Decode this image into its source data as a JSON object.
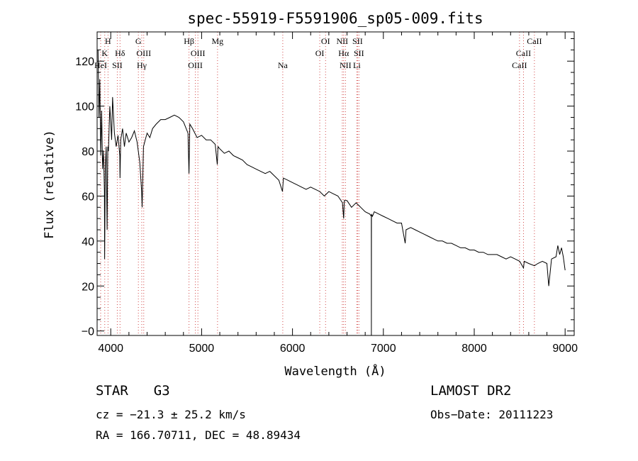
{
  "chart_data": {
    "type": "line",
    "title": "spec-55919-F5591906_sp05-009.fits",
    "xlabel": "Wavelength (Å)",
    "ylabel": "Flux (relative)",
    "xlim": [
      3850,
      9100
    ],
    "ylim": [
      -2,
      133
    ],
    "xticks": [
      4000,
      5000,
      6000,
      7000,
      8000,
      9000
    ],
    "yticks": [
      0,
      20,
      40,
      60,
      80,
      100,
      120
    ],
    "ytick_labels": [
      "−0",
      "20",
      "40",
      "60",
      "80",
      "100",
      "120"
    ],
    "grid": false,
    "series": [
      {
        "x": [
          3860,
          3870,
          3880,
          3890,
          3900,
          3910,
          3920,
          3930,
          3933,
          3940,
          3950,
          3960,
          3968,
          3975,
          3990,
          4000,
          4010,
          4020,
          4040,
          4060,
          4080,
          4100,
          4102,
          4110,
          4130,
          4150,
          4170,
          4200,
          4230,
          4260,
          4290,
          4320,
          4340,
          4345,
          4360,
          4380,
          4400,
          4430,
          4460,
          4500,
          4550,
          4600,
          4650,
          4700,
          4750,
          4800,
          4850,
          4861,
          4870,
          4900,
          4950,
          5000,
          5050,
          5100,
          5150,
          5172,
          5180,
          5200,
          5250,
          5300,
          5350,
          5400,
          5450,
          5500,
          5550,
          5600,
          5650,
          5700,
          5750,
          5800,
          5850,
          5890,
          5900,
          5950,
          6000,
          6050,
          6100,
          6150,
          6200,
          6250,
          6300,
          6350,
          6400,
          6450,
          6500,
          6550,
          6563,
          6570,
          6600,
          6650,
          6700,
          6750,
          6800,
          6850,
          6867,
          6868,
          6869,
          6880,
          6900,
          6950,
          7000,
          7050,
          7100,
          7150,
          7200,
          7240,
          7250,
          7300,
          7350,
          7400,
          7450,
          7500,
          7550,
          7600,
          7650,
          7700,
          7750,
          7800,
          7850,
          7900,
          7950,
          8000,
          8050,
          8100,
          8150,
          8200,
          8250,
          8300,
          8350,
          8400,
          8450,
          8500,
          8542,
          8550,
          8600,
          8662,
          8700,
          8750,
          8800,
          8820,
          8850,
          8900,
          8920,
          8940,
          8960,
          8980,
          9000
        ],
        "y": [
          125,
          95,
          112,
          78,
          98,
          72,
          80,
          62,
          32,
          72,
          82,
          45,
          82,
          80,
          100,
          93,
          85,
          104,
          88,
          82,
          87,
          78,
          68,
          85,
          90,
          82,
          88,
          84,
          86,
          89,
          84,
          75,
          62,
          55,
          82,
          85,
          88,
          86,
          90,
          92,
          94,
          94,
          95,
          96,
          95,
          93,
          88,
          70,
          92,
          90,
          86,
          87,
          85,
          85,
          83,
          74,
          82,
          81,
          79,
          80,
          78,
          77,
          76,
          74,
          73,
          72,
          71,
          70,
          71,
          69,
          67,
          62,
          68,
          67,
          66,
          65,
          64,
          63,
          64,
          63,
          62,
          60,
          62,
          61,
          60,
          57,
          50,
          58,
          58,
          55,
          57,
          55,
          53,
          52,
          51,
          -2,
          52,
          51,
          53,
          52,
          51,
          50,
          49,
          48,
          48,
          39,
          45,
          46,
          45,
          44,
          43,
          42,
          41,
          40,
          40,
          39,
          39,
          38,
          37,
          37,
          36,
          36,
          35,
          35,
          34,
          34,
          34,
          33,
          32,
          33,
          32,
          31,
          28,
          31,
          30,
          29,
          30,
          31,
          30,
          20,
          32,
          33,
          38,
          34,
          37,
          33,
          27
        ]
      }
    ],
    "lines": [
      {
        "label": "H",
        "row": 0,
        "x": 3970
      },
      {
        "label": "K",
        "row": 1,
        "x": 3934
      },
      {
        "label": "HeI",
        "row": 2,
        "x": 3889
      },
      {
        "label": "Hδ",
        "row": 1,
        "x": 4102
      },
      {
        "label": "SII",
        "row": 2,
        "x": 4072
      },
      {
        "label": "G",
        "row": 0,
        "x": 4304
      },
      {
        "label": "OIII",
        "row": 1,
        "x": 4363
      },
      {
        "label": "Hγ",
        "row": 2,
        "x": 4341
      },
      {
        "label": "Hβ",
        "row": 0,
        "x": 4861
      },
      {
        "label": "OIII",
        "row": 1,
        "x": 4959
      },
      {
        "label": "OIII",
        "row": 2,
        "x": 4931
      },
      {
        "label": "Mg",
        "row": 0,
        "x": 5175
      },
      {
        "label": "Na",
        "row": 2,
        "x": 5893
      },
      {
        "label": "OI",
        "row": 0,
        "x": 6364
      },
      {
        "label": "OI",
        "row": 1,
        "x": 6300
      },
      {
        "label": "NII",
        "row": 0,
        "x": 6548
      },
      {
        "label": "Hα",
        "row": 1,
        "x": 6563
      },
      {
        "label": "NII",
        "row": 2,
        "x": 6583
      },
      {
        "label": "SII",
        "row": 0,
        "x": 6716
      },
      {
        "label": "SII",
        "row": 1,
        "x": 6731
      },
      {
        "label": "Li",
        "row": 2,
        "x": 6708
      },
      {
        "label": "CaII",
        "row": 0,
        "x": 8662
      },
      {
        "label": "CaII",
        "row": 1,
        "x": 8542
      },
      {
        "label": "CaII",
        "row": 2,
        "x": 8498
      }
    ]
  },
  "info": {
    "class": "STAR",
    "subclass": "G3",
    "survey": "LAMOST DR2",
    "cz": "cz = −21.3 ± 25.2 km/s",
    "obsdate": "Obs−Date: 20111223",
    "coords": "RA = 166.70711, DEC =  48.89434"
  }
}
